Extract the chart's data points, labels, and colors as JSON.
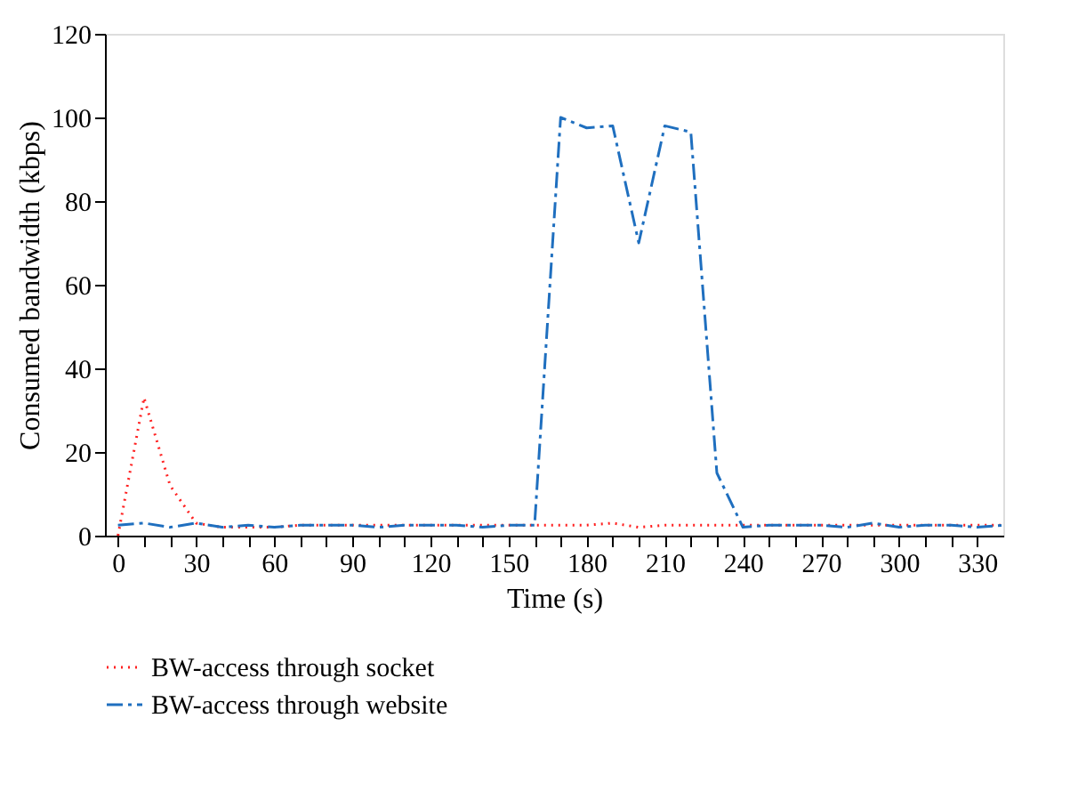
{
  "chart_data": {
    "type": "line",
    "xlabel": "Time (s)",
    "ylabel": "Consumed bandwidth (kbps)",
    "x": [
      0,
      10,
      20,
      30,
      40,
      50,
      60,
      70,
      80,
      90,
      100,
      110,
      120,
      130,
      140,
      150,
      160,
      170,
      180,
      190,
      200,
      210,
      220,
      230,
      240,
      250,
      260,
      270,
      280,
      290,
      300,
      310,
      320,
      330,
      340
    ],
    "series": [
      {
        "name": "BW-access through socket",
        "color": "#ff2020",
        "line_style": "dotted",
        "values": [
          0,
          33,
          12,
          3,
          2,
          2,
          2,
          2.5,
          2.5,
          2.5,
          2.5,
          2.5,
          2.5,
          2.5,
          2.5,
          2.5,
          2.5,
          2.5,
          2.5,
          3,
          2,
          2.5,
          2.5,
          2.5,
          2.5,
          2.5,
          2.5,
          2.5,
          2.5,
          2.5,
          2.5,
          2.5,
          2.5,
          2.5,
          2.5
        ]
      },
      {
        "name": "BW-access through website",
        "color": "#1f6fbf",
        "line_style": "dashed",
        "values": [
          2.5,
          3,
          2,
          3,
          2,
          2.5,
          2,
          2.5,
          2.5,
          2.5,
          2,
          2.5,
          2.5,
          2.5,
          2,
          2.5,
          2.5,
          100,
          97.5,
          98,
          70,
          98,
          96.5,
          15,
          2,
          2.5,
          2.5,
          2.5,
          2,
          3,
          2,
          2.5,
          2.5,
          2,
          2.5
        ]
      }
    ],
    "xlim": [
      -5,
      340
    ],
    "xticks": [
      0,
      {
        "value": 10,
        "label": null
      },
      {
        "value": 20,
        "label": null
      },
      30,
      {
        "value": 40,
        "label": null
      },
      {
        "value": 50,
        "label": null
      },
      60,
      {
        "value": 70,
        "label": null
      },
      {
        "value": 80,
        "label": null
      },
      90,
      {
        "value": 100,
        "label": null
      },
      {
        "value": 110,
        "label": null
      },
      120,
      {
        "value": 130,
        "label": null
      },
      {
        "value": 140,
        "label": null
      },
      150,
      {
        "value": 160,
        "label": null
      },
      {
        "value": 170,
        "label": null
      },
      180,
      {
        "value": 190,
        "label": null
      },
      {
        "value": 200,
        "label": null
      },
      210,
      {
        "value": 220,
        "label": null
      },
      {
        "value": 230,
        "label": null
      },
      240,
      {
        "value": 250,
        "label": null
      },
      {
        "value": 260,
        "label": null
      },
      270,
      {
        "value": 280,
        "label": null
      },
      {
        "value": 290,
        "label": null
      },
      300,
      {
        "value": 310,
        "label": null
      },
      {
        "value": 320,
        "label": null
      },
      330
    ],
    "ylim": [
      0,
      120
    ],
    "yticks": [
      0,
      20,
      40,
      60,
      80,
      100,
      120
    ],
    "grid": false,
    "legend": "bottom",
    "marker": "none"
  }
}
